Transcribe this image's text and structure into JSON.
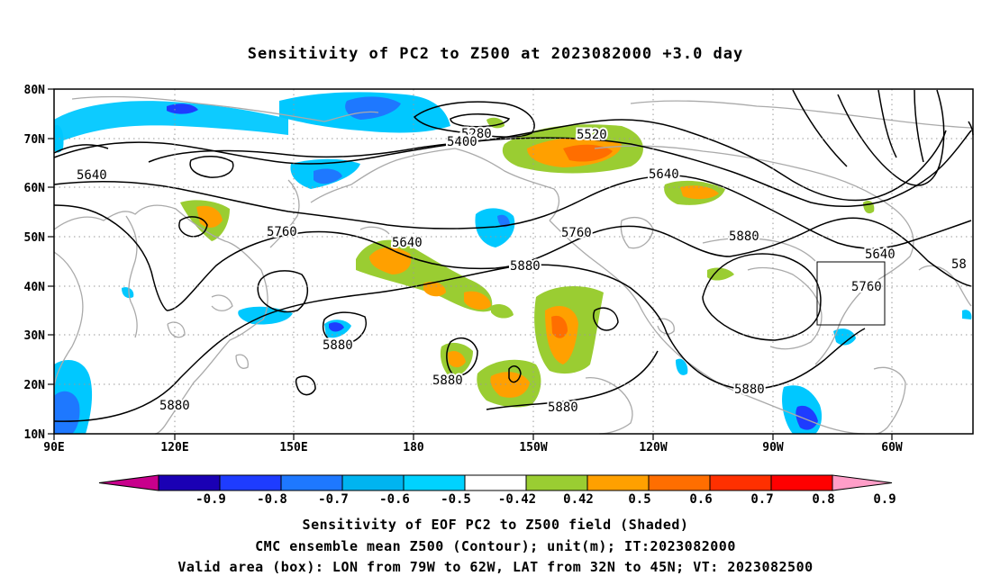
{
  "title": "Sensitivity of PC2 to Z500 at 2023082000 +3.0 day",
  "lat_labels": [
    "80N",
    "70N",
    "60N",
    "50N",
    "40N",
    "30N",
    "20N",
    "10N"
  ],
  "lon_labels": [
    "90E",
    "120E",
    "150E",
    "180",
    "150W",
    "120W",
    "90W",
    "60W"
  ],
  "contour_labels": [
    "5280",
    "5400",
    "5520",
    "5640",
    "5640",
    "5640",
    "5640",
    "5760",
    "5760",
    "5760",
    "5880",
    "5880",
    "5880",
    "5880",
    "5880",
    "5880",
    "5880",
    "58"
  ],
  "colorbar": {
    "labels": [
      "-0.9",
      "-0.8",
      "-0.7",
      "-0.6",
      "-0.5",
      "-0.42",
      "0.42",
      "0.5",
      "0.6",
      "0.7",
      "0.8",
      "0.9"
    ],
    "colors": [
      "#c8008c",
      "#1a00b4",
      "#1e3cff",
      "#1e78ff",
      "#00b4f0",
      "#00d2ff",
      "#ffffff",
      "#9acd32",
      "#ffa000",
      "#ff6e00",
      "#ff3000",
      "#ff0000",
      "#ff9ec8"
    ]
  },
  "valid_box": {
    "lon_from": "79W",
    "lon_to": "62W",
    "lat_from": "32N",
    "lat_to": "45N"
  },
  "captions": [
    "Sensitivity of EOF PC2 to Z500 field (Shaded)",
    "CMC ensemble mean Z500 (Contour); unit(m); IT:2023082000",
    "Valid area (box): LON from 79W to 62W, LAT from 32N to 45N; VT: 2023082500"
  ]
}
